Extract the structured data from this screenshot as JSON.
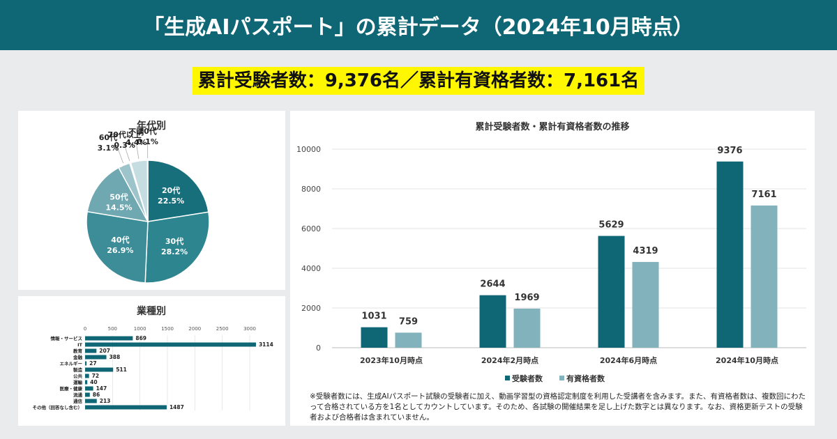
{
  "header": {
    "title": "「生成AIパスポート」の累計データ（2024年10月時点）"
  },
  "banner": {
    "text": "累計受験者数：9,376名／累計有資格者数：7,161名"
  },
  "note": "※受験者数には、生成AIパスポート試験の受験者に加え、動画学習型の資格認定制度を利用した受講者を含みます。また、有資格者数は、複数回にわたって合格されている方を1名としてカウントしています。そのため、各試験の開催結果を足し上げた数字とは異なります。なお、資格更新テストの受験者および合格者は含まれていません。",
  "colors": {
    "header": "#0f6674",
    "dark": "#0f6674",
    "light": "#82b3bd",
    "banner": "#fff700",
    "pie": [
      "#186f7c",
      "#2d8590",
      "#3c8d97",
      "#6fa8b0",
      "#9cc4ca",
      "#a9ccd1",
      "#c5dde0"
    ]
  },
  "chart_data": [
    {
      "type": "pie",
      "title": "年代別",
      "categories": [
        "20代",
        "30代",
        "40代",
        "50代",
        "60代",
        "70代以上",
        "不明",
        "10代"
      ],
      "values": [
        22.5,
        28.2,
        26.9,
        14.5,
        3.1,
        0.3,
        4.4,
        0.1
      ],
      "labels": [
        "22.5%",
        "28.2%",
        "26.9%",
        "14.5%",
        "3.1%",
        "0.3%",
        "4.4%",
        "0.1%"
      ]
    },
    {
      "type": "bar",
      "orientation": "horizontal",
      "title": "業種別",
      "categories": [
        "情報・サービス",
        "IT",
        "教育",
        "金融",
        "エネルギー",
        "製造",
        "公共",
        "運輸",
        "医療・健康",
        "流通",
        "通信",
        "その他（回答なし含む）"
      ],
      "values": [
        869,
        3114,
        207,
        388,
        27,
        511,
        72,
        40,
        147,
        86,
        213,
        1487
      ],
      "xlim": [
        0,
        3000
      ],
      "xticks": [
        0,
        500,
        1000,
        1500,
        2000,
        2500,
        3000
      ]
    },
    {
      "type": "bar",
      "title": "累計受験者数・累計有資格者数の推移",
      "categories": [
        "2023年10月時点",
        "2024年2月時点",
        "2024年6月時点",
        "2024年10月時点"
      ],
      "series": [
        {
          "name": "受験者数",
          "values": [
            1031,
            2644,
            5629,
            9376
          ]
        },
        {
          "name": "有資格者数",
          "values": [
            759,
            1969,
            4319,
            7161
          ]
        }
      ],
      "ylim": [
        0,
        10000
      ],
      "yticks": [
        0,
        2000,
        4000,
        6000,
        8000,
        10000
      ]
    }
  ]
}
